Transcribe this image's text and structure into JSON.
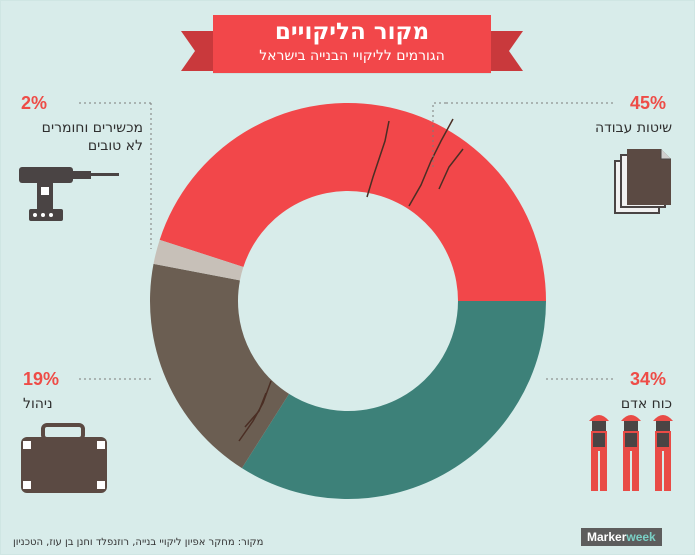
{
  "chart_data": {
    "type": "pie",
    "title": "מקור הליקויים",
    "subtitle": "הגורמים לליקויי הבנייה בישראל",
    "slices": [
      {
        "label": "שיטות עבודה",
        "value": 45,
        "pct_label": "45%",
        "color": "#f2474a"
      },
      {
        "label": "כוח אדם",
        "value": 34,
        "pct_label": "34%",
        "color": "#3d8179"
      },
      {
        "label": "ניהול",
        "value": 19,
        "pct_label": "19%",
        "color": "#6b5e52"
      },
      {
        "label": "מכשירים וחומרים לא טובים",
        "value": 2,
        "pct_label": "2%",
        "color": "#c7c0b8"
      }
    ]
  },
  "header": {
    "title": "מקור הליקויים",
    "subtitle": "הגורמים לליקויי הבנייה בישראל"
  },
  "labels": {
    "work_methods": "שיטות עבודה",
    "manpower": "כוח אדם",
    "management": "ניהול",
    "tools_line1": "מכשירים וחומרים",
    "tools_line2": "לא טובים"
  },
  "footer": {
    "source": "מקור: מחקר אפיון ליקויי בנייה, רוזנפלד וחנן בן עוז, הטכניון",
    "brand_main": "Marker",
    "brand_accent": "week"
  },
  "icons": {
    "work_methods": "documents-icon",
    "tools": "drill-icon",
    "management": "briefcase-icon",
    "manpower": "workers-icon"
  }
}
